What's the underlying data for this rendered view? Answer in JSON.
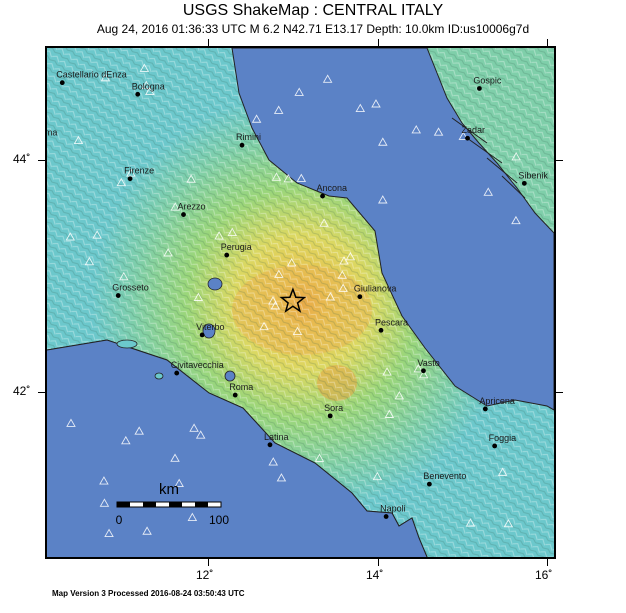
{
  "header": {
    "title": "USGS ShakeMap : CENTRAL ITALY",
    "subtitle": "Aug 24, 2016 01:36:33 UTC   M 6.2   N42.71 E13.17   Depth: 10.0km   ID:us10006g7d"
  },
  "axes": {
    "lat_ticks": [
      "44˚",
      "42˚"
    ],
    "lon_ticks": [
      "12˚",
      "14˚",
      "16˚"
    ]
  },
  "scale_bar": {
    "unit": "km",
    "start": "0",
    "end": "100"
  },
  "cities": [
    {
      "name": "Castellario dEnza",
      "lat": 44.6,
      "lon": 10.45
    },
    {
      "name": "Bologna",
      "lat": 44.5,
      "lon": 11.34
    },
    {
      "name": "Parma",
      "lat": 44.1,
      "lon": 10.15
    },
    {
      "name": "Rimini",
      "lat": 44.06,
      "lon": 12.57
    },
    {
      "name": "Firenze",
      "lat": 43.77,
      "lon": 11.25
    },
    {
      "name": "Ancona",
      "lat": 43.62,
      "lon": 13.52
    },
    {
      "name": "Arezzo",
      "lat": 43.46,
      "lon": 11.88
    },
    {
      "name": "Perugia",
      "lat": 43.11,
      "lon": 12.39
    },
    {
      "name": "Grosseto",
      "lat": 42.76,
      "lon": 11.11
    },
    {
      "name": "Giulianova",
      "lat": 42.75,
      "lon": 13.96
    },
    {
      "name": "Pescara",
      "lat": 42.46,
      "lon": 14.21
    },
    {
      "name": "Viterbo",
      "lat": 42.42,
      "lon": 12.1
    },
    {
      "name": "Vasto",
      "lat": 42.11,
      "lon": 14.71
    },
    {
      "name": "Civitavecchia",
      "lat": 42.09,
      "lon": 11.8
    },
    {
      "name": "Roma",
      "lat": 41.9,
      "lon": 12.49
    },
    {
      "name": "Sora",
      "lat": 41.72,
      "lon": 13.61
    },
    {
      "name": "Apricena",
      "lat": 41.78,
      "lon": 15.44
    },
    {
      "name": "Foggia",
      "lat": 41.46,
      "lon": 15.55
    },
    {
      "name": "Latina",
      "lat": 41.47,
      "lon": 12.9
    },
    {
      "name": "Benevento",
      "lat": 41.13,
      "lon": 14.78
    },
    {
      "name": "Napoli",
      "lat": 40.85,
      "lon": 14.27
    },
    {
      "name": "Gospic",
      "lat": 44.55,
      "lon": 15.37
    },
    {
      "name": "Zadar",
      "lat": 44.12,
      "lon": 15.23
    },
    {
      "name": "Sibenik",
      "lat": 43.73,
      "lon": 15.9
    }
  ],
  "epicenter": {
    "lat": 42.71,
    "lon": 13.17
  },
  "footer": {
    "text": "Map Version 3 Processed 2016-08-24 03:50:43 UTC"
  },
  "colors": {
    "sea": "#5b82c6",
    "coast_sea": "#7d9fd8",
    "intensity_low": "#86d4d4",
    "intensity_mid": "#8fd68a",
    "intensity_high": "#e8d066",
    "intensity_peak": "#e8a040"
  }
}
